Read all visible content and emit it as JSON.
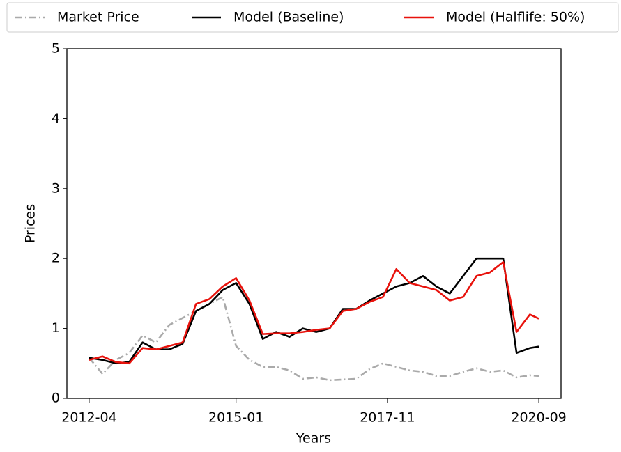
{
  "chart_data": {
    "type": "line",
    "x_label": "Years",
    "y_label": "Prices",
    "x": [
      "2012-04",
      "2012-07",
      "2012-10",
      "2013-01",
      "2013-04",
      "2013-07",
      "2013-10",
      "2014-01",
      "2014-04",
      "2014-07",
      "2014-10",
      "2015-01",
      "2015-04",
      "2015-07",
      "2015-10",
      "2016-01",
      "2016-04",
      "2016-07",
      "2016-10",
      "2017-01",
      "2017-04",
      "2017-07",
      "2017-10",
      "2018-01",
      "2018-04",
      "2018-07",
      "2018-10",
      "2019-01",
      "2019-04",
      "2019-07",
      "2019-10",
      "2020-01",
      "2020-04",
      "2020-07",
      "2020-09"
    ],
    "series": [
      {
        "name": "Market Price",
        "color": "#aaaaaa",
        "style": "dashdot",
        "values": [
          0.58,
          0.35,
          0.55,
          0.65,
          0.9,
          0.8,
          1.05,
          1.15,
          1.25,
          1.35,
          1.45,
          0.75,
          0.55,
          0.45,
          0.45,
          0.4,
          0.28,
          0.3,
          0.26,
          0.27,
          0.28,
          0.42,
          0.5,
          0.45,
          0.4,
          0.38,
          0.32,
          0.32,
          0.38,
          0.43,
          0.38,
          0.4,
          0.3,
          0.33,
          0.32
        ]
      },
      {
        "name": "Model (Baseline)",
        "color": "#000000",
        "style": "solid",
        "values": [
          0.58,
          0.55,
          0.5,
          0.52,
          0.8,
          0.7,
          0.7,
          0.78,
          1.25,
          1.35,
          1.55,
          1.65,
          1.35,
          0.85,
          0.95,
          0.88,
          1.0,
          0.95,
          1.0,
          1.28,
          1.28,
          1.4,
          1.5,
          1.6,
          1.65,
          1.75,
          1.6,
          1.5,
          1.75,
          2.0,
          2.0,
          2.0,
          0.65,
          0.72,
          0.74
        ]
      },
      {
        "name": "Model (Halflife: 50%)",
        "color": "#e8120c",
        "style": "solid",
        "values": [
          0.55,
          0.6,
          0.52,
          0.5,
          0.72,
          0.7,
          0.75,
          0.8,
          1.35,
          1.42,
          1.6,
          1.72,
          1.4,
          0.92,
          0.93,
          0.93,
          0.95,
          0.98,
          1.0,
          1.25,
          1.28,
          1.38,
          1.45,
          1.85,
          1.65,
          1.6,
          1.55,
          1.4,
          1.45,
          1.75,
          1.8,
          1.95,
          0.95,
          1.2,
          1.14
        ]
      }
    ],
    "xlim": [
      "2011-11",
      "2021-02"
    ],
    "xticks": [
      "2012-04",
      "2015-01",
      "2017-11",
      "2020-09"
    ],
    "ylim": [
      0,
      5
    ],
    "yticks": [
      0,
      1,
      2,
      3,
      4,
      5
    ],
    "legend": "top"
  }
}
